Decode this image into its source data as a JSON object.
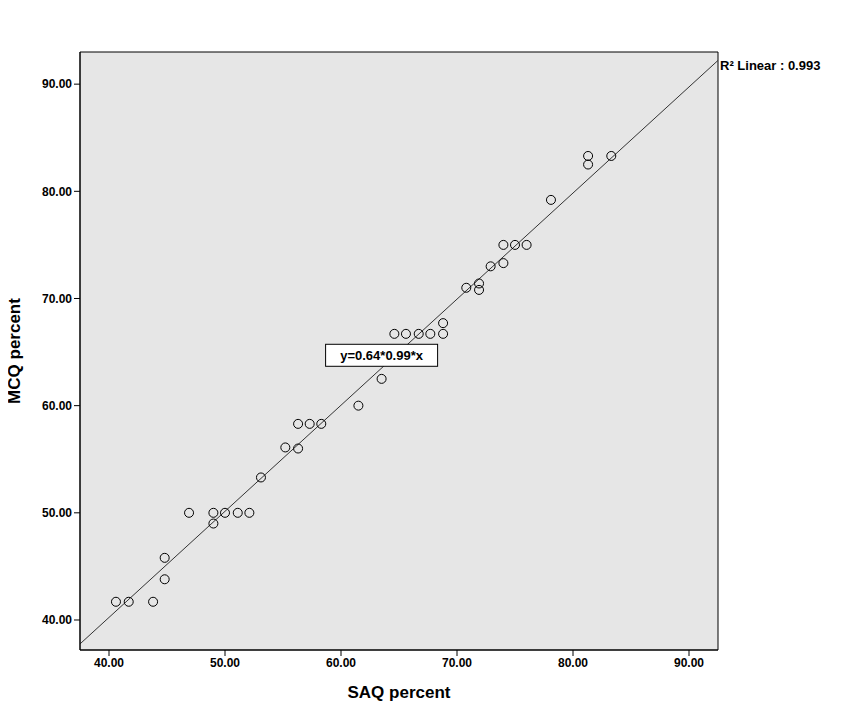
{
  "chart_data": {
    "type": "scatter",
    "x_label": "SAQ percent",
    "y_label": "MCQ percent",
    "x": [
      40.6,
      41.7,
      43.8,
      44.8,
      44.8,
      46.9,
      49.0,
      49.0,
      50.0,
      51.1,
      52.1,
      53.1,
      55.2,
      56.3,
      56.3,
      57.3,
      58.3,
      61.5,
      63.5,
      64.6,
      65.6,
      66.7,
      67.7,
      68.8,
      68.8,
      70.8,
      71.9,
      71.9,
      72.9,
      74.0,
      74.0,
      75.0,
      76.0,
      78.1,
      81.3,
      81.3,
      83.3
    ],
    "values": [
      41.7,
      41.7,
      41.7,
      45.8,
      43.8,
      50.0,
      50.0,
      49.0,
      50.0,
      50.0,
      50.0,
      53.3,
      56.1,
      58.3,
      56.0,
      58.3,
      58.3,
      60.0,
      62.5,
      66.7,
      66.7,
      66.7,
      66.7,
      66.7,
      67.7,
      71.0,
      71.4,
      70.8,
      73.0,
      75.0,
      73.3,
      75.0,
      75.0,
      79.2,
      83.3,
      82.5,
      83.3
    ],
    "xlim": [
      37.5,
      92.5
    ],
    "ylim": [
      37.2,
      93.0
    ],
    "xticks": [
      {
        "value": 40,
        "label": "40.00"
      },
      {
        "value": 50,
        "label": "50.00"
      },
      {
        "value": 60,
        "label": "60.00"
      },
      {
        "value": 70,
        "label": "70.00"
      },
      {
        "value": 80,
        "label": "80.00"
      },
      {
        "value": 90,
        "label": "90.00"
      }
    ],
    "yticks": [
      {
        "value": 40,
        "label": "40.00"
      },
      {
        "value": 50,
        "label": "50.00"
      },
      {
        "value": 60,
        "label": "60.00"
      },
      {
        "value": 70,
        "label": "70.00"
      },
      {
        "value": 80,
        "label": "80.00"
      },
      {
        "value": 90,
        "label": "90.00"
      }
    ],
    "fit": {
      "intercept": 0.64,
      "slope": 0.99
    },
    "annotations": [
      "y=0.64*0.99*x",
      "R² Linear : 0.993"
    ],
    "color": "#000000",
    "marker": "circle",
    "grid": false
  }
}
